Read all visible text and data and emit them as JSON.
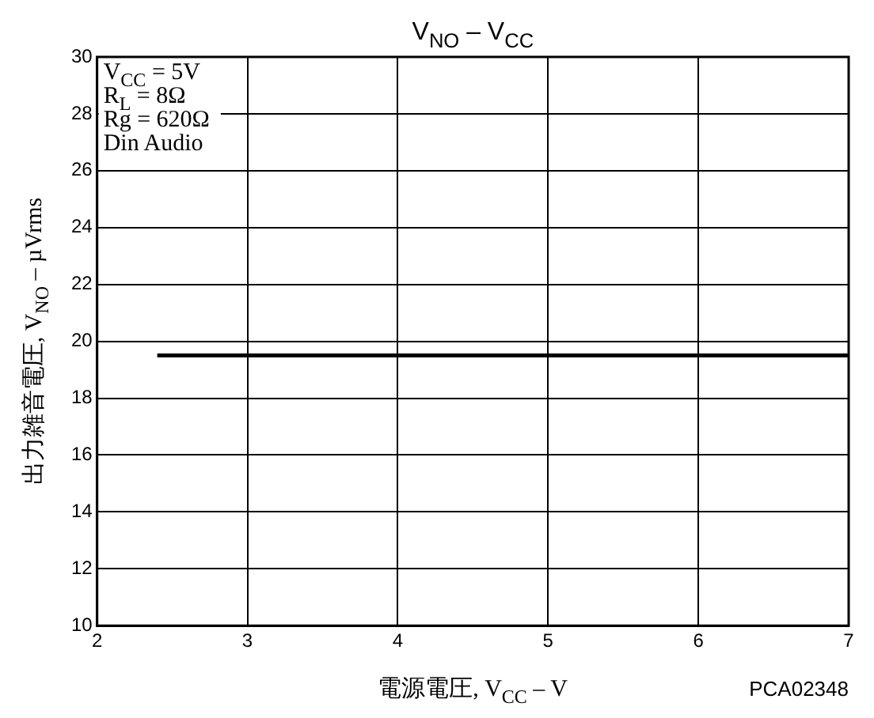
{
  "chart_data": {
    "type": "line",
    "title": "V$_{NO}$ – V$_{CC}$",
    "xlabel": "電源電圧, V$_{CC}$ – V",
    "ylabel": "出力雑音電圧, V$_{NO}$ – µVrms",
    "x": [
      2.4,
      7
    ],
    "series": [
      {
        "color": "#000000",
        "values": [
          19.5,
          19.5
        ]
      }
    ],
    "xlim": [
      2,
      7
    ],
    "xticks": [
      2,
      3,
      4,
      5,
      6,
      7
    ],
    "ylim": [
      10,
      30
    ],
    "yticks": [
      10,
      12,
      14,
      16,
      18,
      20,
      22,
      24,
      26,
      28,
      30
    ],
    "grid": true,
    "legend": false,
    "marker": "none",
    "line_style": "solid",
    "annotations": [
      "V$_{CC}$ = 5V",
      "R$_{L}$ = 8Ω",
      "Rg = 620Ω",
      "Din Audio",
      "PCA02348"
    ]
  }
}
